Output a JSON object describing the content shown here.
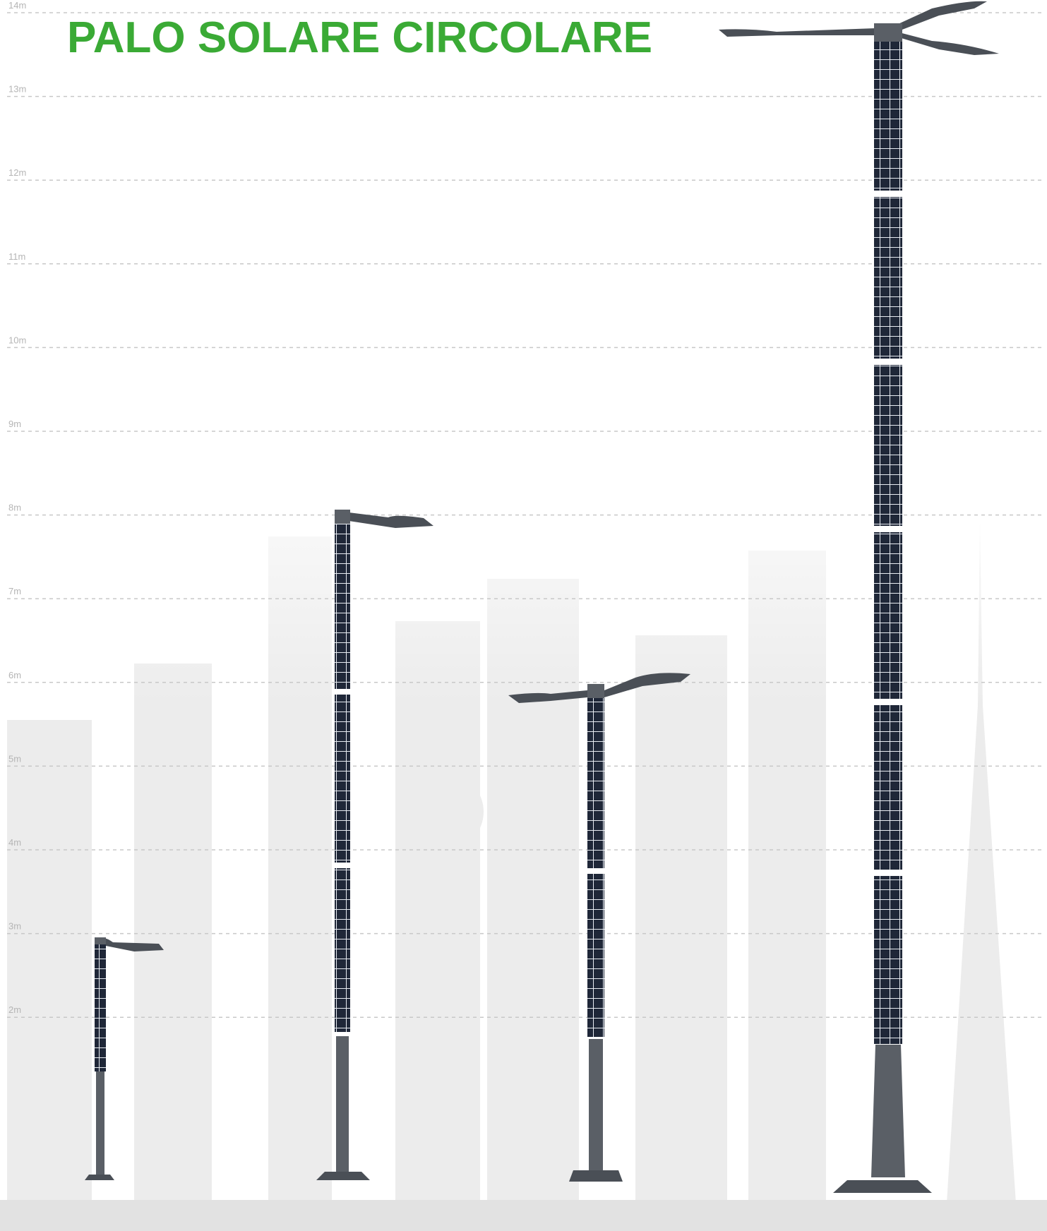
{
  "title": "PALO SOLARE CIRCOLARE",
  "scale": {
    "labels": [
      "14m",
      "13m",
      "12m",
      "11m",
      "10m",
      "9m",
      "8m",
      "7m",
      "6m",
      "5m",
      "4m",
      "3m",
      "2m"
    ]
  }
}
